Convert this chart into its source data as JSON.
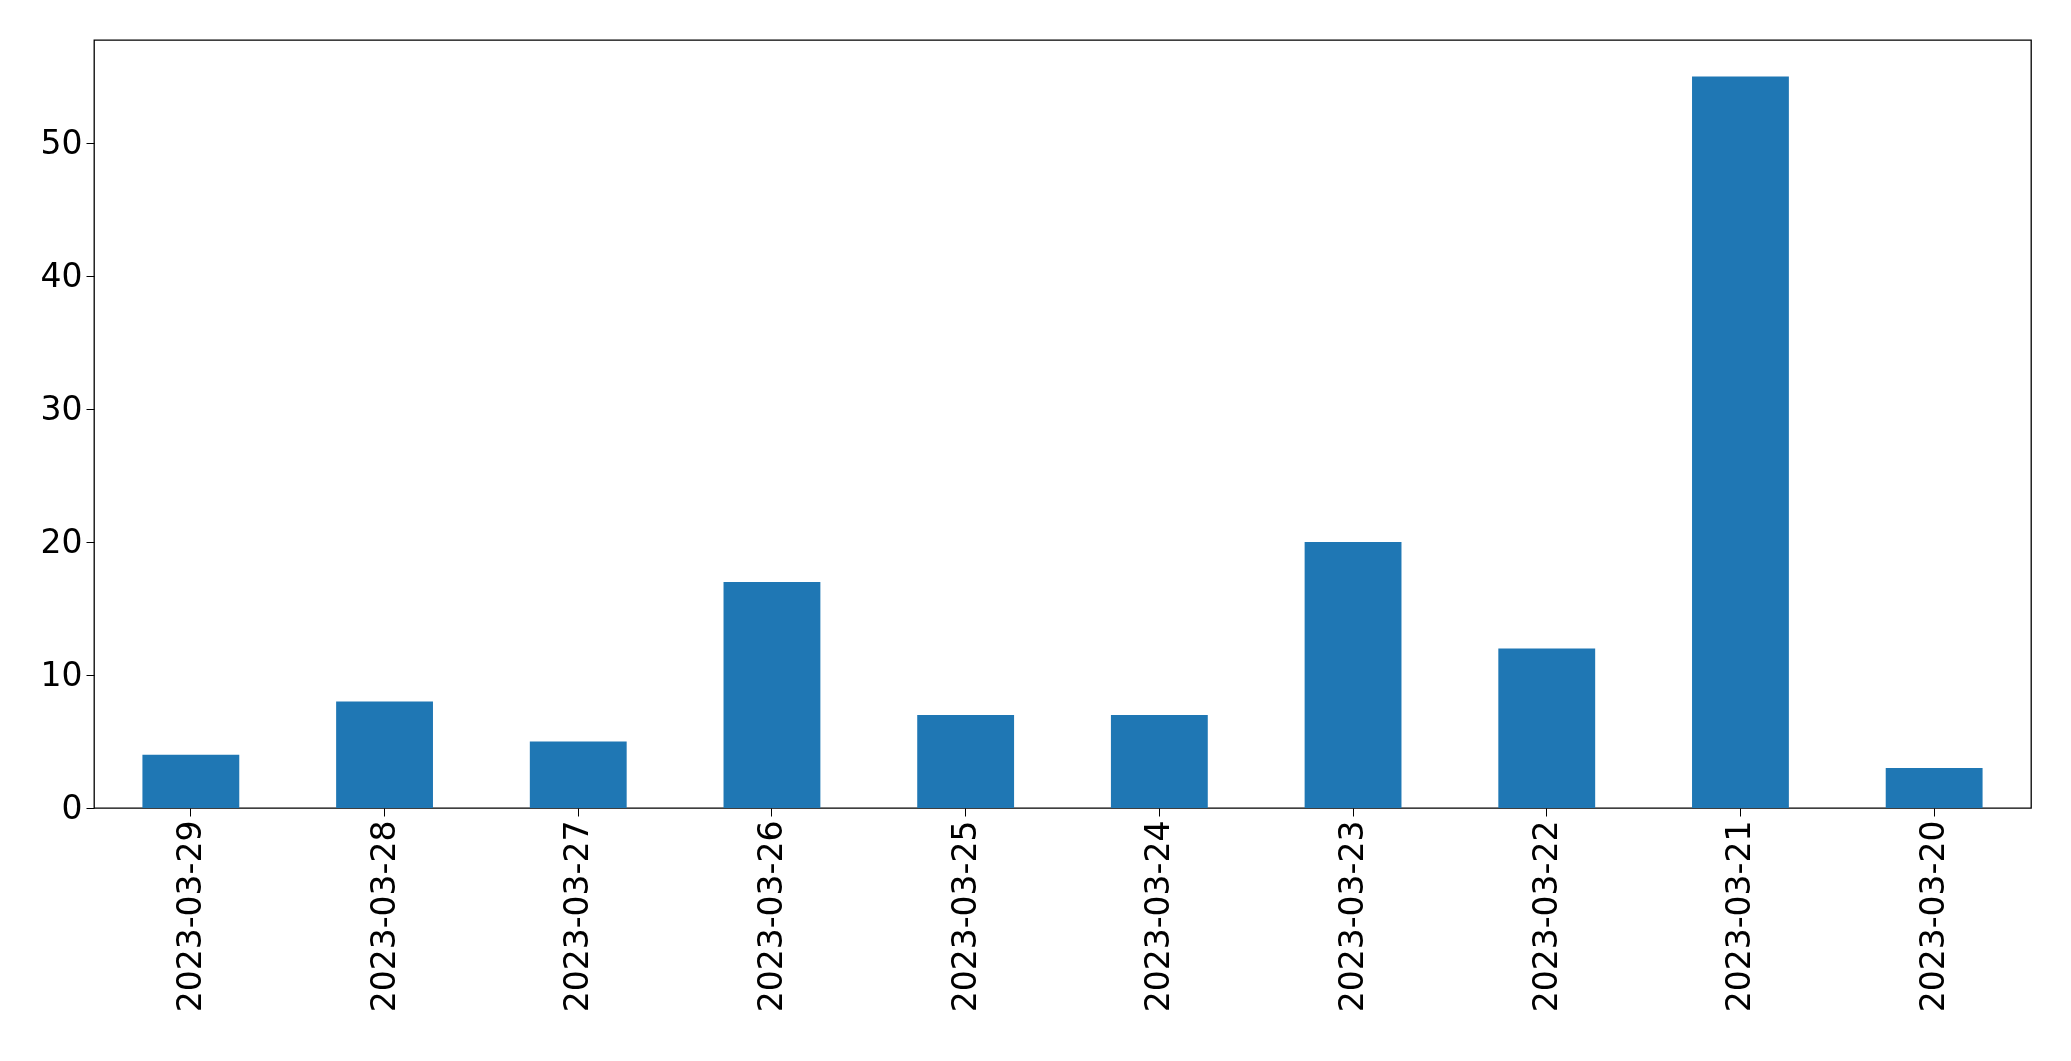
{
  "chart_data": {
    "type": "bar",
    "categories": [
      "2023-03-29",
      "2023-03-28",
      "2023-03-27",
      "2023-03-26",
      "2023-03-25",
      "2023-03-24",
      "2023-03-23",
      "2023-03-22",
      "2023-03-21",
      "2023-03-20"
    ],
    "values": [
      4,
      8,
      5,
      17,
      7,
      7,
      20,
      12,
      55,
      3
    ],
    "color": "#1f77b4",
    "ylim": [
      0,
      57.75
    ],
    "yticks": [
      0,
      10,
      20,
      30,
      40,
      50
    ],
    "grid": false
  }
}
